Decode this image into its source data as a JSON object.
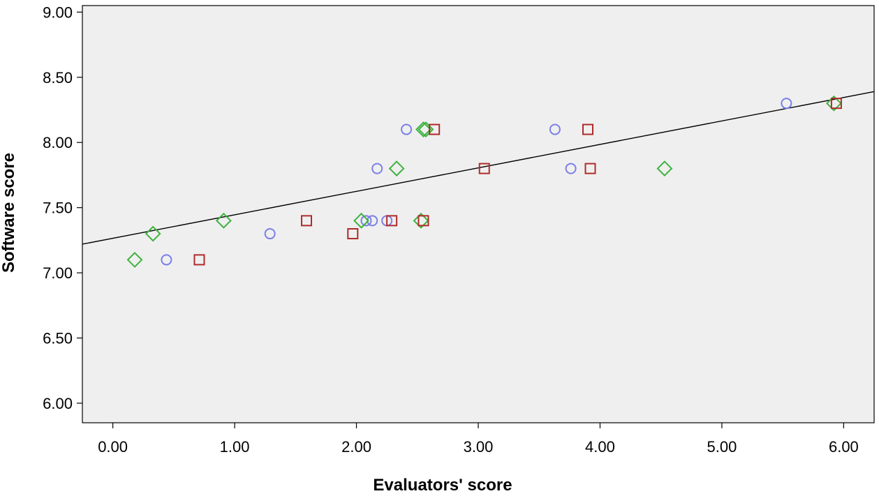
{
  "chart_data": {
    "type": "scatter",
    "title": "",
    "xlabel": "Evaluators' score",
    "ylabel": "Software score",
    "xlim": [
      -0.25,
      6.25
    ],
    "ylim": [
      5.85,
      9.05
    ],
    "grid": false,
    "plot_background": "#efefef",
    "x_ticks": [
      {
        "value": 0,
        "label": "0.00"
      },
      {
        "value": 1,
        "label": "1.00"
      },
      {
        "value": 2,
        "label": "2.00"
      },
      {
        "value": 3,
        "label": "3.00"
      },
      {
        "value": 4,
        "label": "4.00"
      },
      {
        "value": 5,
        "label": "5.00"
      },
      {
        "value": 6,
        "label": "6.00"
      }
    ],
    "y_ticks": [
      {
        "value": 6.0,
        "label": "6.00"
      },
      {
        "value": 6.5,
        "label": "6.50"
      },
      {
        "value": 7.0,
        "label": "7.00"
      },
      {
        "value": 7.5,
        "label": "7.50"
      },
      {
        "value": 8.0,
        "label": "8.00"
      },
      {
        "value": 8.5,
        "label": "8.50"
      },
      {
        "value": 9.0,
        "label": "9.00"
      }
    ],
    "series": [
      {
        "marker": "circle",
        "color": "#7b7fe8",
        "points": [
          [
            0.44,
            7.1
          ],
          [
            1.29,
            7.3
          ],
          [
            2.08,
            7.4
          ],
          [
            2.13,
            7.4
          ],
          [
            2.25,
            7.4
          ],
          [
            2.17,
            7.8
          ],
          [
            2.41,
            8.1
          ],
          [
            3.63,
            8.1
          ],
          [
            3.76,
            7.8
          ],
          [
            5.53,
            8.3
          ]
        ]
      },
      {
        "marker": "diamond",
        "color": "#3db33d",
        "points": [
          [
            0.18,
            7.1
          ],
          [
            0.33,
            7.3
          ],
          [
            0.91,
            7.4
          ],
          [
            2.04,
            7.4
          ],
          [
            2.33,
            7.8
          ],
          [
            2.53,
            7.4
          ],
          [
            2.55,
            8.1
          ],
          [
            2.57,
            8.1
          ],
          [
            4.53,
            7.8
          ],
          [
            5.92,
            8.3
          ]
        ]
      },
      {
        "marker": "square",
        "color": "#b02a2a",
        "points": [
          [
            0.71,
            7.1
          ],
          [
            1.59,
            7.4
          ],
          [
            1.97,
            7.3
          ],
          [
            2.29,
            7.4
          ],
          [
            2.55,
            7.4
          ],
          [
            2.64,
            8.1
          ],
          [
            3.05,
            7.8
          ],
          [
            3.9,
            8.1
          ],
          [
            3.92,
            7.8
          ],
          [
            5.94,
            8.3
          ]
        ]
      }
    ],
    "fit_line": {
      "intercept": 7.265,
      "slope": 0.18,
      "color": "#000000"
    }
  }
}
